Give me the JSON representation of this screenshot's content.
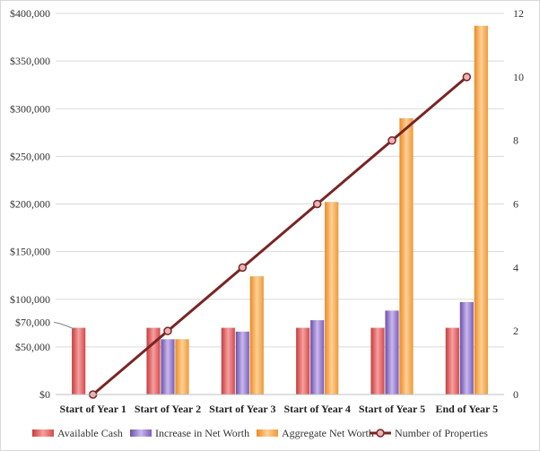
{
  "chart_data": {
    "type": "bar",
    "title": "",
    "categories": [
      "Start of Year 1",
      "Start of Year 2",
      "Start of Year 3",
      "Start of Year 4",
      "Start of Year 5",
      "End of Year 5"
    ],
    "series": [
      {
        "name": "Available Cash",
        "type": "bar",
        "axis": "left",
        "color": "#e05a5a",
        "values": [
          70000,
          70000,
          70000,
          70000,
          70000,
          70000
        ]
      },
      {
        "name": "Increase in Net Worth",
        "type": "bar",
        "axis": "left",
        "color": "#8e6fc6",
        "values": [
          0,
          58000,
          66000,
          78000,
          88000,
          97000
        ]
      },
      {
        "name": "Aggregate Net Worth",
        "type": "bar",
        "axis": "left",
        "color": "#f5a040",
        "values": [
          0,
          58000,
          124000,
          202000,
          290000,
          387000
        ]
      },
      {
        "name": "Number of Properties",
        "type": "line",
        "axis": "right",
        "color": "#7a2424",
        "values": [
          0,
          2,
          4,
          6,
          8,
          10
        ]
      }
    ],
    "y_left": {
      "min": 0,
      "max": 400000,
      "ticks": [
        "$0",
        "$50,000",
        "$100,000",
        "$150,000",
        "$200,000",
        "$250,000",
        "$300,000",
        "$350,000",
        "$400,000"
      ],
      "annotation_label": "$70,000"
    },
    "y_right": {
      "min": 0,
      "max": 12,
      "ticks": [
        "0",
        "2",
        "4",
        "6",
        "8",
        "10",
        "12"
      ]
    },
    "legend_position": "bottom",
    "grid": true
  }
}
